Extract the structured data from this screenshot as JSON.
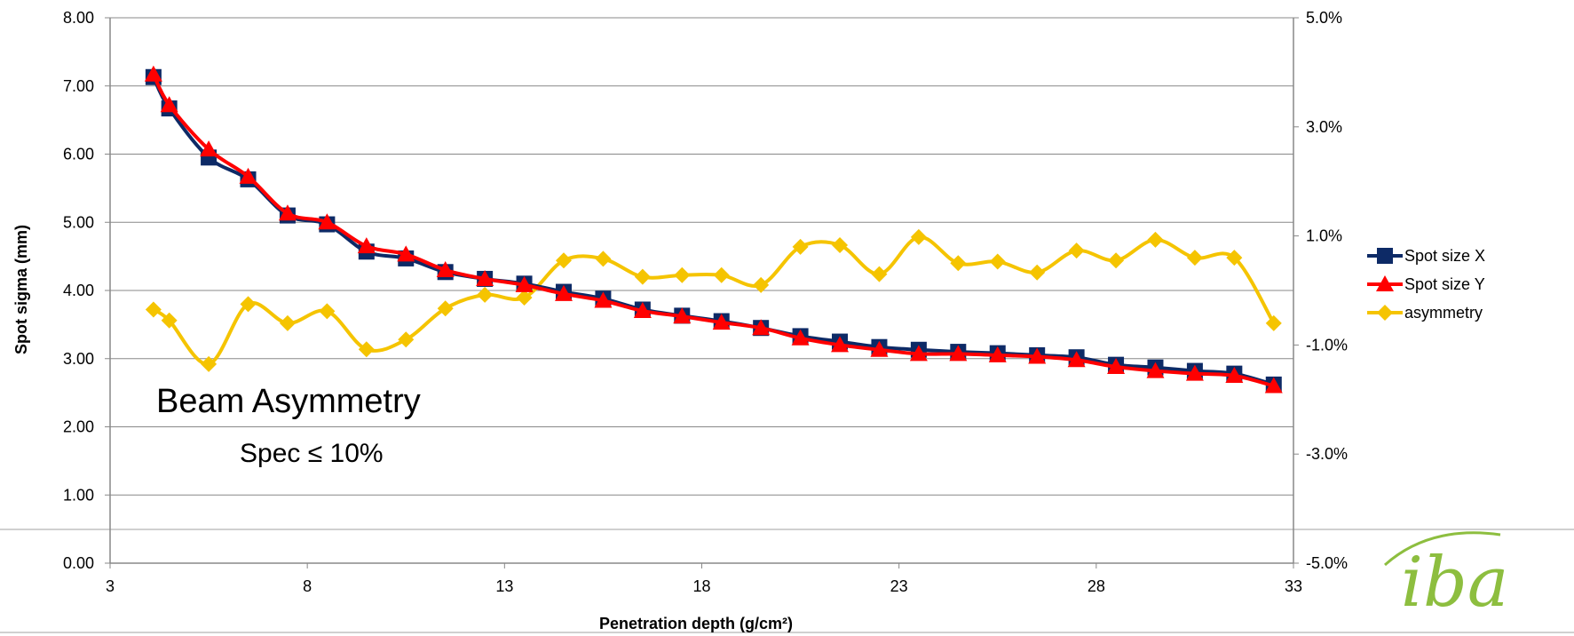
{
  "chart_data": {
    "type": "line",
    "xlabel": "Penetration depth (g/cm²)",
    "ylabel": "Spot sigma (mm)",
    "xlim": [
      3,
      33
    ],
    "ylim": [
      0,
      8
    ],
    "y2lim": [
      -5,
      5
    ],
    "x_ticks": [
      "3",
      "8",
      "13",
      "18",
      "23",
      "28",
      "33"
    ],
    "y_ticks": [
      "0.00",
      "1.00",
      "2.00",
      "3.00",
      "4.00",
      "5.00",
      "6.00",
      "7.00",
      "8.00"
    ],
    "y2_ticks": [
      "-5.0%",
      "-3.0%",
      "-1.0%",
      "1.0%",
      "3.0%",
      "5.0%"
    ],
    "grid": true,
    "legend_position": "right",
    "annotations": [
      "Beam Asymmetry",
      "Spec  ≤ 10%"
    ],
    "logo_text": "iba",
    "series": [
      {
        "name": "Spot size X",
        "axis": "left",
        "marker": "square",
        "color": "#0d2a66",
        "x": [
          4.1,
          4.5,
          5.5,
          6.5,
          7.5,
          8.5,
          9.5,
          10.5,
          11.5,
          12.5,
          13.5,
          14.5,
          15.5,
          16.5,
          17.5,
          18.5,
          19.5,
          20.5,
          21.5,
          22.5,
          23.5,
          24.5,
          25.5,
          26.5,
          27.5,
          28.5,
          29.5,
          30.5,
          31.5,
          32.5
        ],
        "values": [
          7.13,
          6.67,
          5.95,
          5.63,
          5.1,
          4.97,
          4.57,
          4.47,
          4.27,
          4.17,
          4.1,
          3.98,
          3.88,
          3.72,
          3.63,
          3.55,
          3.45,
          3.33,
          3.25,
          3.17,
          3.13,
          3.1,
          3.08,
          3.05,
          3.02,
          2.91,
          2.87,
          2.82,
          2.78,
          2.62
        ]
      },
      {
        "name": "Spot size Y",
        "axis": "left",
        "marker": "triangle",
        "color": "#ff0000",
        "x": [
          4.1,
          4.5,
          5.5,
          6.5,
          7.5,
          8.5,
          9.5,
          10.5,
          11.5,
          12.5,
          13.5,
          14.5,
          15.5,
          16.5,
          17.5,
          18.5,
          19.5,
          20.5,
          21.5,
          22.5,
          23.5,
          24.5,
          25.5,
          26.5,
          27.5,
          28.5,
          29.5,
          30.5,
          31.5,
          32.5
        ],
        "values": [
          7.17,
          6.72,
          6.07,
          5.67,
          5.13,
          5.0,
          4.65,
          4.53,
          4.3,
          4.17,
          4.08,
          3.95,
          3.85,
          3.7,
          3.62,
          3.53,
          3.45,
          3.3,
          3.2,
          3.13,
          3.07,
          3.07,
          3.05,
          3.03,
          2.98,
          2.88,
          2.82,
          2.78,
          2.75,
          2.6
        ]
      },
      {
        "name": "asymmetry",
        "axis": "right",
        "marker": "diamond",
        "color": "#f5c400",
        "x": [
          4.1,
          4.5,
          5.5,
          6.5,
          7.5,
          8.5,
          9.5,
          10.5,
          11.5,
          12.5,
          13.5,
          14.5,
          15.5,
          16.5,
          17.5,
          18.5,
          19.5,
          20.5,
          21.5,
          22.5,
          23.5,
          24.5,
          25.5,
          26.5,
          27.5,
          28.5,
          29.5,
          30.5,
          31.5,
          32.5
        ],
        "values": [
          -0.35,
          -0.55,
          -1.35,
          -0.25,
          -0.6,
          -0.38,
          -1.08,
          -0.9,
          -0.33,
          -0.08,
          -0.13,
          0.55,
          0.58,
          0.25,
          0.28,
          0.28,
          0.1,
          0.8,
          0.83,
          0.3,
          0.98,
          0.5,
          0.53,
          0.33,
          0.73,
          0.55,
          0.93,
          0.6,
          0.6,
          -0.6
        ]
      }
    ]
  }
}
